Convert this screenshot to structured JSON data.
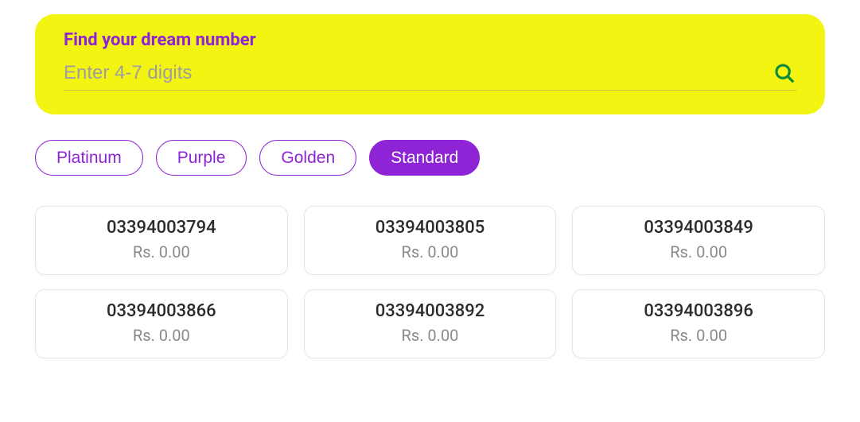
{
  "search": {
    "title": "Find your dream number",
    "placeholder": "Enter 4-7 digits",
    "panel_bg": "#f4f413",
    "title_color": "#8e24d6",
    "icon_color": "#0a8a3a"
  },
  "filters": {
    "accent_color": "#8e24d6",
    "items": [
      {
        "label": "Platinum",
        "active": false
      },
      {
        "label": "Purple",
        "active": false
      },
      {
        "label": "Golden",
        "active": false
      },
      {
        "label": "Standard",
        "active": true
      }
    ]
  },
  "numbers": {
    "currency_prefix": "Rs. ",
    "items": [
      {
        "number": "03394003794",
        "price": "0.00"
      },
      {
        "number": "03394003805",
        "price": "0.00"
      },
      {
        "number": "03394003849",
        "price": "0.00"
      },
      {
        "number": "03394003866",
        "price": "0.00"
      },
      {
        "number": "03394003892",
        "price": "0.00"
      },
      {
        "number": "03394003896",
        "price": "0.00"
      }
    ]
  },
  "card_style": {
    "border_color": "#e6e6e6",
    "number_color": "#2b2b2b",
    "price_color": "#8a8a8a"
  }
}
